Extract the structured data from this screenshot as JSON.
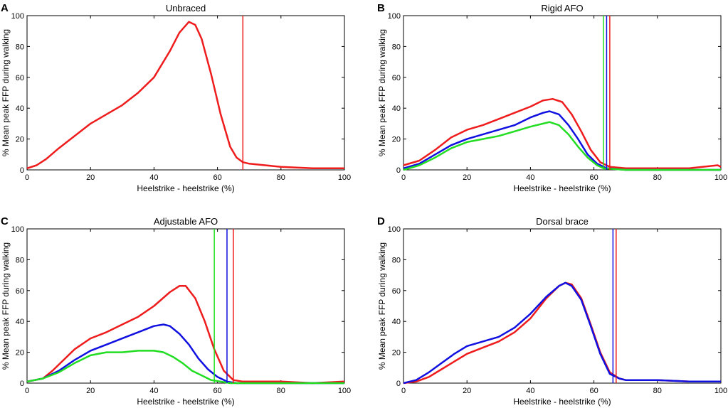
{
  "colors": {
    "red": "#ee1c1c",
    "blue": "#1010e0",
    "green": "#22dd22",
    "axis": "#000000"
  },
  "chart_data": [
    {
      "panel": "A",
      "type": "line",
      "title": "Unbraced",
      "xlabel": "Heelstrike - heelstrike (%)",
      "ylabel": "% Mean peak FFP during walking",
      "xlim": [
        0,
        100
      ],
      "ylim": [
        0,
        100
      ],
      "xticks": [
        "0",
        "20",
        "40",
        "60",
        "80",
        "100"
      ],
      "yticks": [
        "0",
        "20",
        "40",
        "60",
        "80",
        "100"
      ],
      "series": [
        {
          "name": "red",
          "color": "red",
          "x": [
            0,
            3,
            6,
            10,
            15,
            20,
            25,
            30,
            35,
            40,
            45,
            48,
            51,
            53,
            55,
            58,
            61,
            64,
            66,
            68,
            70,
            75,
            80,
            90,
            100
          ],
          "y": [
            1,
            3,
            7,
            14,
            22,
            30,
            36,
            42,
            50,
            60,
            77,
            89,
            96,
            94,
            85,
            62,
            36,
            15,
            8,
            5,
            4,
            3,
            2,
            1,
            1
          ]
        }
      ],
      "vlines": [
        {
          "color": "red",
          "x": 68
        }
      ]
    },
    {
      "panel": "B",
      "type": "line",
      "title": "Rigid AFO",
      "xlabel": "Heelstrike - heelstrike (%)",
      "ylabel": "% Mean peak FFP during walking",
      "xlim": [
        0,
        100
      ],
      "ylim": [
        0,
        100
      ],
      "xticks": [
        "0",
        "20",
        "40",
        "60",
        "80",
        "100"
      ],
      "yticks": [
        "0",
        "20",
        "40",
        "60",
        "80",
        "100"
      ],
      "series": [
        {
          "name": "red",
          "color": "red",
          "x": [
            0,
            5,
            10,
            15,
            20,
            25,
            30,
            35,
            40,
            44,
            47,
            50,
            53,
            56,
            59,
            62,
            65,
            70,
            80,
            90,
            99,
            100
          ],
          "y": [
            3,
            6,
            13,
            21,
            26,
            29,
            33,
            37,
            41,
            45,
            46,
            44,
            36,
            25,
            13,
            5,
            2,
            1,
            1,
            1,
            3,
            2
          ]
        },
        {
          "name": "blue",
          "color": "blue",
          "x": [
            0,
            5,
            10,
            15,
            20,
            25,
            30,
            35,
            40,
            44,
            46,
            49,
            52,
            55,
            58,
            61,
            64,
            70,
            80,
            90,
            100
          ],
          "y": [
            1,
            4,
            10,
            16,
            20,
            23,
            26,
            29,
            34,
            37,
            38,
            36,
            29,
            20,
            10,
            4,
            1,
            0,
            0,
            0,
            0
          ]
        },
        {
          "name": "green",
          "color": "green",
          "x": [
            0,
            5,
            10,
            15,
            20,
            25,
            30,
            35,
            40,
            44,
            46,
            49,
            52,
            55,
            58,
            61,
            63,
            70,
            80,
            90,
            100
          ],
          "y": [
            0,
            3,
            8,
            14,
            18,
            20,
            22,
            25,
            28,
            30,
            31,
            29,
            23,
            15,
            8,
            3,
            1,
            0,
            0,
            0,
            0
          ]
        }
      ],
      "vlines": [
        {
          "color": "green",
          "x": 63
        },
        {
          "color": "blue",
          "x": 64
        },
        {
          "color": "red",
          "x": 65
        }
      ]
    },
    {
      "panel": "C",
      "type": "line",
      "title": "Adjustable AFO",
      "xlabel": "Heelstrike - heelstrike (%)",
      "ylabel": "% Mean peak FFP during walking",
      "xlim": [
        0,
        100
      ],
      "ylim": [
        0,
        100
      ],
      "xticks": [
        "0",
        "20",
        "40",
        "60",
        "80",
        "100"
      ],
      "yticks": [
        "0",
        "20",
        "40",
        "60",
        "80",
        "100"
      ],
      "series": [
        {
          "name": "red",
          "color": "red",
          "x": [
            0,
            5,
            8,
            10,
            15,
            20,
            25,
            30,
            35,
            40,
            45,
            48,
            50,
            53,
            56,
            59,
            62,
            65,
            68,
            70,
            80,
            90,
            100
          ],
          "y": [
            1,
            3,
            8,
            12,
            22,
            29,
            33,
            38,
            43,
            50,
            59,
            63,
            63,
            55,
            40,
            22,
            8,
            2,
            1,
            1,
            1,
            0,
            1
          ]
        },
        {
          "name": "blue",
          "color": "blue",
          "x": [
            0,
            5,
            10,
            15,
            20,
            25,
            30,
            35,
            40,
            43,
            45,
            48,
            51,
            54,
            57,
            60,
            63,
            66,
            70,
            80,
            90,
            100
          ],
          "y": [
            1,
            3,
            8,
            15,
            21,
            25,
            29,
            33,
            37,
            38,
            37,
            32,
            25,
            16,
            9,
            4,
            1,
            0,
            0,
            0,
            0,
            0
          ]
        },
        {
          "name": "green",
          "color": "green",
          "x": [
            0,
            5,
            10,
            15,
            20,
            25,
            30,
            35,
            40,
            43,
            46,
            49,
            52,
            55,
            58,
            61,
            64,
            70,
            80,
            90,
            100
          ],
          "y": [
            1,
            3,
            7,
            13,
            18,
            20,
            20,
            21,
            21,
            20,
            17,
            13,
            8,
            5,
            2,
            1,
            0,
            0,
            0,
            0,
            0
          ]
        }
      ],
      "vlines": [
        {
          "color": "green",
          "x": 59
        },
        {
          "color": "blue",
          "x": 63
        },
        {
          "color": "red",
          "x": 65
        }
      ]
    },
    {
      "panel": "D",
      "type": "line",
      "title": "Dorsal brace",
      "xlabel": "Heelstrike - heelstrike (%)",
      "ylabel": "% Mean peak FFP during walking",
      "xlim": [
        0,
        100
      ],
      "ylim": [
        0,
        100
      ],
      "xticks": [
        "0",
        "20",
        "40",
        "60",
        "80",
        "100"
      ],
      "yticks": [
        "0",
        "20",
        "40",
        "60",
        "80",
        "100"
      ],
      "series": [
        {
          "name": "red",
          "color": "red",
          "x": [
            0,
            4,
            8,
            12,
            16,
            20,
            25,
            30,
            35,
            40,
            45,
            49,
            51,
            53,
            56,
            59,
            62,
            65,
            68,
            70,
            80,
            90,
            100
          ],
          "y": [
            0,
            1,
            4,
            9,
            14,
            19,
            23,
            27,
            33,
            42,
            55,
            63,
            65,
            64,
            55,
            38,
            20,
            7,
            3,
            2,
            2,
            1,
            1
          ]
        },
        {
          "name": "blue",
          "color": "blue",
          "x": [
            0,
            4,
            8,
            12,
            16,
            20,
            25,
            30,
            35,
            40,
            45,
            49,
            51,
            53,
            56,
            59,
            62,
            65,
            68,
            70,
            80,
            90,
            100
          ],
          "y": [
            0,
            2,
            7,
            13,
            19,
            24,
            27,
            30,
            36,
            45,
            56,
            63,
            65,
            63,
            54,
            37,
            19,
            6,
            3,
            2,
            2,
            1,
            1
          ]
        }
      ],
      "vlines": [
        {
          "color": "blue",
          "x": 66
        },
        {
          "color": "red",
          "x": 67
        }
      ]
    }
  ]
}
